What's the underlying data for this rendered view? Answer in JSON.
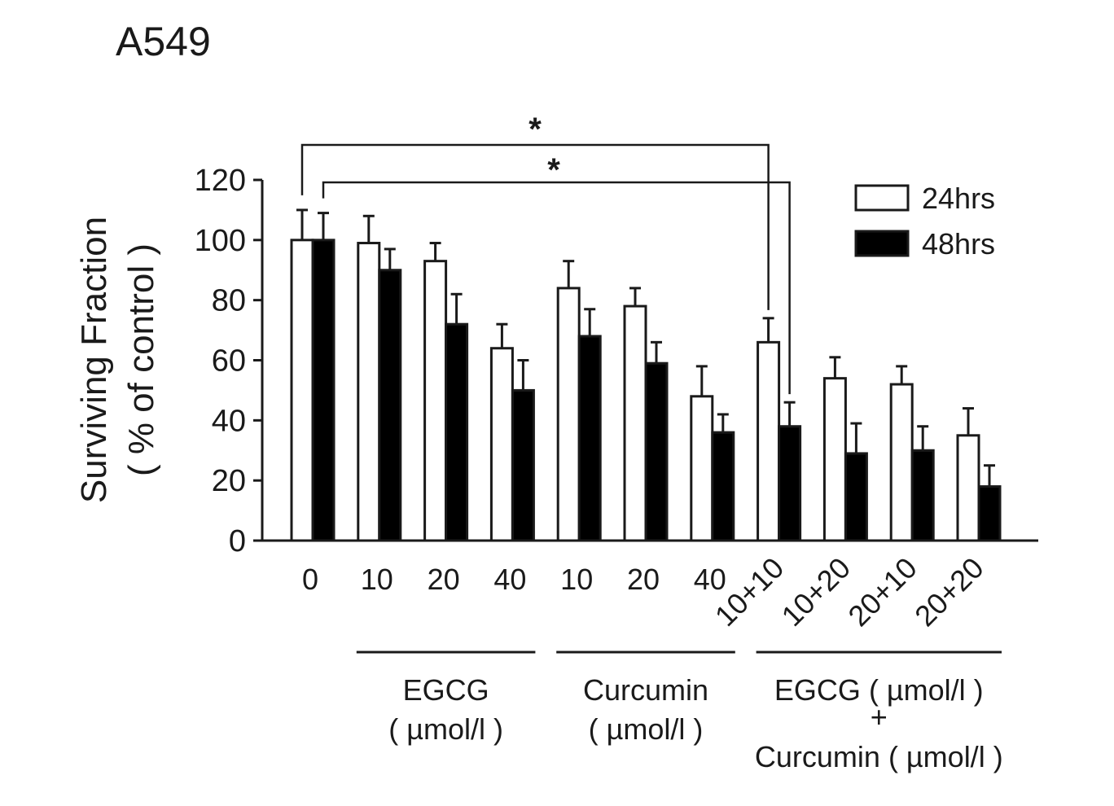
{
  "panel_label": "A549",
  "chart_data": {
    "type": "bar",
    "categories": [
      "0",
      "10",
      "20",
      "40",
      "10",
      "20",
      "40",
      "10+10",
      "10+20",
      "20+10",
      "20+20"
    ],
    "series": [
      {
        "name": "24hrs",
        "values": [
          100,
          99,
          93,
          64,
          84,
          78,
          48,
          66,
          54,
          52,
          35
        ],
        "errors": [
          10,
          9,
          6,
          8,
          9,
          6,
          10,
          8,
          7,
          6,
          9
        ],
        "fill": "#ffffff"
      },
      {
        "name": "48hrs",
        "values": [
          100,
          90,
          72,
          50,
          68,
          59,
          36,
          38,
          29,
          30,
          18
        ],
        "errors": [
          9,
          7,
          10,
          10,
          9,
          7,
          6,
          8,
          10,
          8,
          7
        ],
        "fill": "#000000"
      }
    ],
    "ylabel": [
      "Surviving Fraction",
      "( % of control )"
    ],
    "ylim": [
      0,
      120
    ],
    "yticks": [
      "0",
      "20",
      "40",
      "60",
      "80",
      "100",
      "120"
    ],
    "groups": [
      {
        "lines": [
          "EGCG",
          "( µmol/l )"
        ],
        "from": 1,
        "to": 3
      },
      {
        "lines": [
          "Curcumin",
          "( µmol/l )"
        ],
        "from": 4,
        "to": 6
      },
      {
        "lines": [
          "EGCG ( µmol/l )",
          "+",
          "Curcumin ( µmol/l )"
        ],
        "from": 7,
        "to": 10
      }
    ],
    "significance": [
      {
        "label": "*",
        "from_category": 0,
        "from_series": 0,
        "to_category": 7,
        "to_series": 0
      },
      {
        "label": "*",
        "from_category": 0,
        "from_series": 1,
        "to_category": 7,
        "to_series": 1
      }
    ],
    "legend": "top-right",
    "grid": false,
    "colors": {
      "axis": "#1a1a1a",
      "bar_24h": "#ffffff",
      "bar_48h": "#000000"
    }
  }
}
